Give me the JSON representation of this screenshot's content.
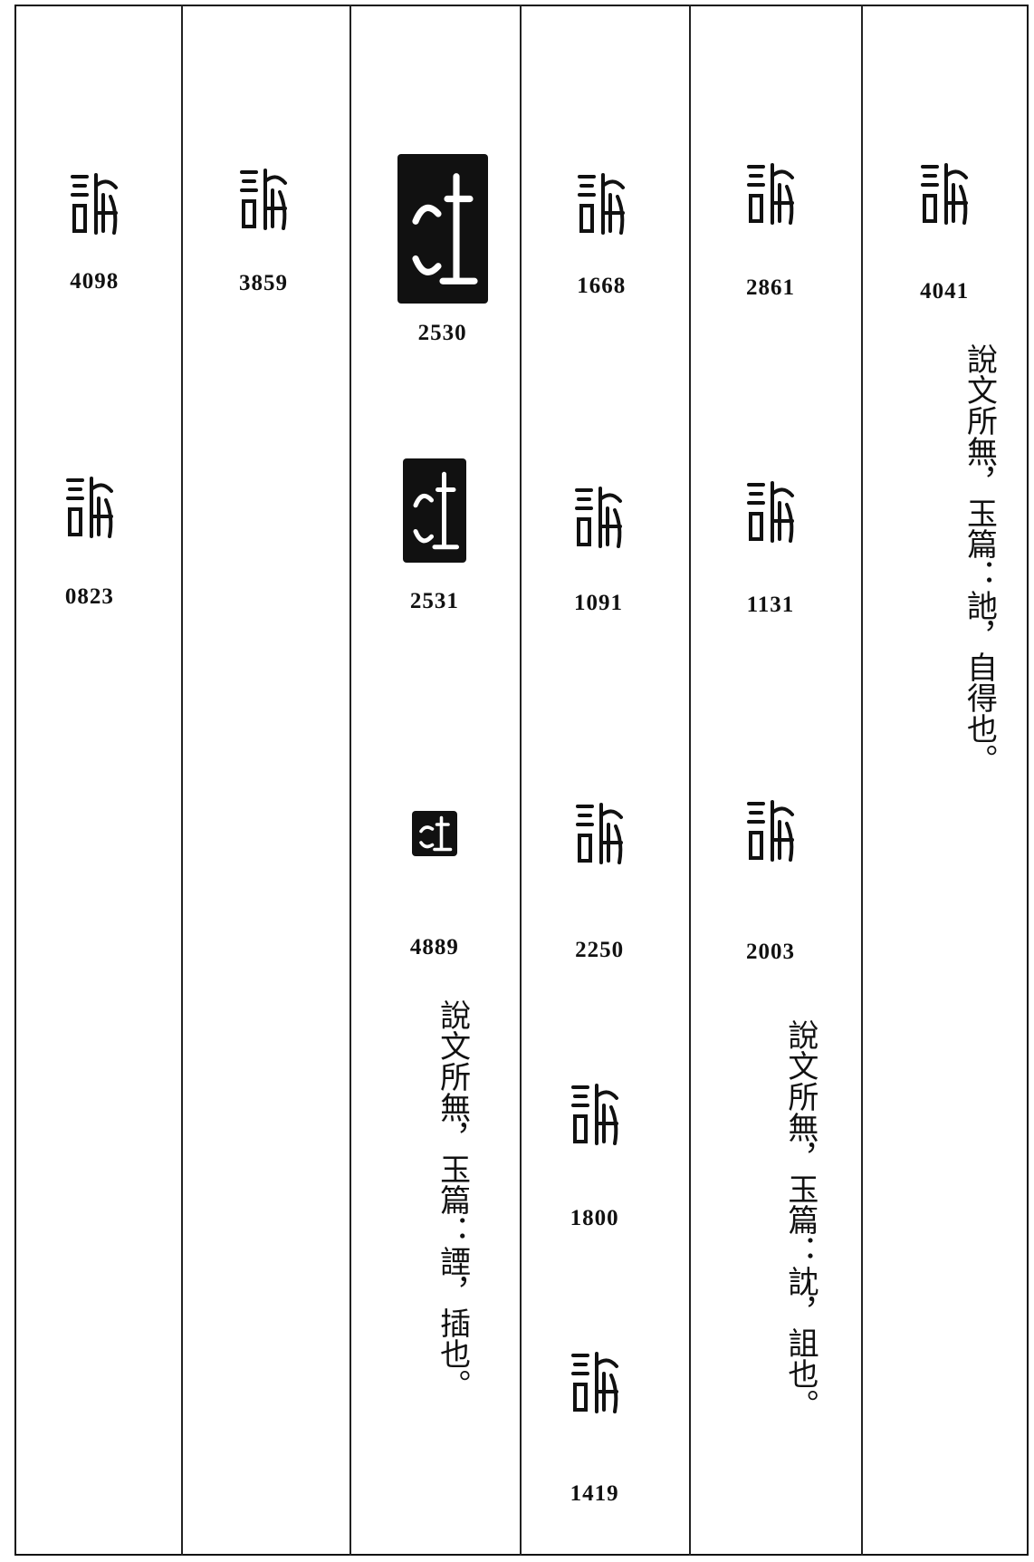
{
  "columns": [
    {
      "entries": [
        {
          "number": "4098"
        },
        {
          "number": "0823"
        }
      ]
    },
    {
      "entries": [
        {
          "number": "3859"
        }
      ]
    },
    {
      "entries": [
        {
          "number": "2530"
        },
        {
          "number": "2531"
        },
        {
          "number": "4889"
        }
      ],
      "note": "說文所無，玉篇：諲，插也。"
    },
    {
      "entries": [
        {
          "number": "1668"
        },
        {
          "number": "1091"
        },
        {
          "number": "2250"
        },
        {
          "number": "1800"
        },
        {
          "number": "1419"
        }
      ]
    },
    {
      "entries": [
        {
          "number": "2861"
        },
        {
          "number": "1131"
        },
        {
          "number": "2003"
        }
      ],
      "note": "說文所無，玉篇：訦，詛也。"
    },
    {
      "entries": [
        {
          "number": "4041"
        }
      ],
      "note": "說文所無，玉篇：訑，自得也。"
    }
  ]
}
